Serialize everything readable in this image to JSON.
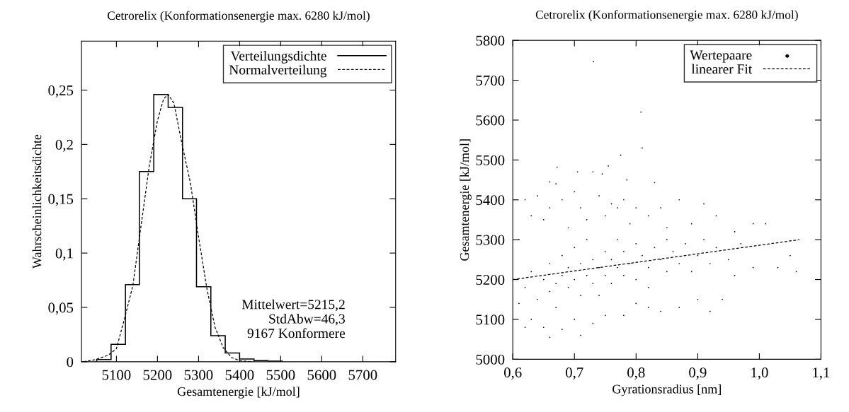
{
  "chart_data": [
    {
      "type": "histogram",
      "title": "Cetrorelix (Konformationsenergie max. 6280 kJ/mol)",
      "xlabel": "Gesamtenergie [kJ/mol]",
      "ylabel": "Wahrscheinlichkeitsdichte",
      "xlim": [
        5015,
        5780
      ],
      "ylim": [
        0,
        0.295
      ],
      "xticks": [
        5100,
        5200,
        5300,
        5400,
        5500,
        5600,
        5700
      ],
      "yticks": [
        0,
        {
          "value": 0.05,
          "label": "0,05"
        },
        {
          "value": 0.1,
          "label": "0,1"
        },
        {
          "value": 0.15,
          "label": "0,15"
        },
        {
          "value": 0.2,
          "label": "0,2"
        },
        {
          "value": 0.25,
          "label": "0,25"
        }
      ],
      "legend": "top right",
      "annotations": [
        "Mittelwert=5215,2",
        "StdAbw=46,3",
        "9167 Konformere"
      ],
      "series": [
        {
          "name": "Verteilungsdichte",
          "color": "#000000",
          "bins": [
            5052,
            5087,
            5122,
            5156,
            5191,
            5226,
            5261,
            5295,
            5330,
            5365,
            5400,
            5435,
            5469,
            5504
          ],
          "values": [
            0.002,
            0.016,
            0.071,
            0.175,
            0.246,
            0.234,
            0.15,
            0.069,
            0.024,
            0.008,
            0.0025,
            0.001,
            0.0005
          ]
        },
        {
          "name": "Normalverteilung",
          "type": "line",
          "color": "#000000",
          "line_style": "dashed",
          "x": [
            5020,
            5050,
            5080,
            5100,
            5120,
            5140,
            5160,
            5180,
            5200,
            5215,
            5226,
            5240,
            5260,
            5280,
            5300,
            5320,
            5340,
            5360,
            5380,
            5400,
            5430
          ],
          "values": [
            0.0,
            0.002,
            0.006,
            0.012,
            0.04,
            0.07,
            0.125,
            0.18,
            0.222,
            0.242,
            0.246,
            0.238,
            0.2,
            0.165,
            0.115,
            0.068,
            0.032,
            0.013,
            0.004,
            0.001,
            0.0
          ]
        }
      ]
    },
    {
      "type": "scatter",
      "title": "Cetrorelix (Konformationsenergie max. 6280 kJ/mol)",
      "xlabel": "Gyrationsradius [nm]",
      "ylabel": "Gesamtenergie [kJ/mol]",
      "xlim": [
        0.6,
        1.1
      ],
      "ylim": [
        5000,
        5800
      ],
      "xticks": [
        {
          "value": 0.6,
          "label": "0,6"
        },
        {
          "value": 0.7,
          "label": "0,7"
        },
        {
          "value": 0.8,
          "label": "0,8"
        },
        {
          "value": 0.9,
          "label": "0,9"
        },
        {
          "value": 1.0,
          "label": "1,0"
        },
        {
          "value": 1.1,
          "label": "1,1"
        }
      ],
      "yticks": [
        5000,
        5100,
        5200,
        5300,
        5400,
        5500,
        5600,
        5700,
        5800
      ],
      "legend": "top right",
      "series": [
        {
          "name": "Wertepaare",
          "color": "#000000",
          "x": [
            0.62,
            0.63,
            0.64,
            0.65,
            0.66,
            0.66,
            0.67,
            0.67,
            0.68,
            0.68,
            0.69,
            0.69,
            0.7,
            0.7,
            0.71,
            0.71,
            0.72,
            0.72,
            0.73,
            0.73,
            0.74,
            0.74,
            0.75,
            0.75,
            0.76,
            0.76,
            0.77,
            0.77,
            0.78,
            0.78,
            0.79,
            0.8,
            0.8,
            0.81,
            0.82,
            0.82,
            0.83,
            0.84,
            0.85,
            0.85,
            0.86,
            0.87,
            0.88,
            0.89,
            0.9,
            0.91,
            0.92,
            0.93,
            0.95,
            0.97,
            0.99,
            1.01,
            1.03,
            1.05,
            1.06,
            0.61,
            0.62,
            0.63,
            0.65,
            0.66,
            0.68,
            0.7,
            0.71,
            0.73,
            0.75,
            0.78,
            0.8,
            0.82,
            0.84,
            0.87,
            0.9,
            0.92,
            0.94,
            0.96,
            0.61,
            0.62,
            0.63,
            0.64,
            0.65,
            0.66,
            0.67,
            0.68,
            0.69,
            0.7,
            0.71,
            0.72,
            0.73,
            0.74,
            0.75,
            0.76,
            0.77,
            0.78,
            0.79,
            0.8,
            0.82,
            0.84,
            0.85,
            0.87,
            0.89,
            0.91,
            0.93,
            0.96,
            0.99,
            0.731,
            0.808,
            0.81,
            0.775,
            0.672,
            0.755,
            0.705,
            0.83,
            0.785,
            0.745,
            0.66
          ],
          "values": [
            5180,
            5220,
            5150,
            5200,
            5170,
            5240,
            5190,
            5130,
            5210,
            5260,
            5180,
            5230,
            5200,
            5280,
            5160,
            5240,
            5210,
            5300,
            5190,
            5250,
            5230,
            5160,
            5270,
            5210,
            5190,
            5250,
            5300,
            5230,
            5210,
            5270,
            5240,
            5290,
            5200,
            5260,
            5230,
            5180,
            5280,
            5250,
            5220,
            5300,
            5270,
            5240,
            5290,
            5220,
            5260,
            5300,
            5240,
            5280,
            5250,
            5290,
            5230,
            5340,
            5230,
            5260,
            5220,
            5140,
            5080,
            5100,
            5080,
            5055,
            5075,
            5100,
            5060,
            5090,
            5110,
            5110,
            5140,
            5130,
            5120,
            5130,
            5150,
            5120,
            5150,
            5210,
            5300,
            5400,
            5360,
            5410,
            5350,
            5380,
            5440,
            5400,
            5330,
            5420,
            5380,
            5350,
            5470,
            5410,
            5360,
            5390,
            5380,
            5400,
            5340,
            5380,
            5360,
            5380,
            5330,
            5400,
            5340,
            5390,
            5360,
            5320,
            5340,
            5747,
            5620,
            5530,
            5512,
            5482,
            5485,
            5470,
            5443,
            5450,
            5465,
            5445
          ]
        },
        {
          "name": "linearer Fit",
          "type": "line",
          "color": "#000000",
          "line_style": "dashed",
          "x": [
            0.6,
            1.065
          ],
          "values": [
            5200,
            5300
          ]
        }
      ]
    }
  ]
}
